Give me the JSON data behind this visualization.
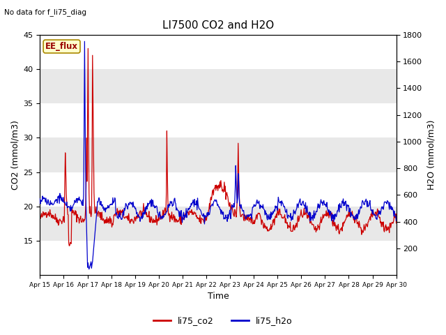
{
  "title": "LI7500 CO2 and H2O",
  "top_left_text": "No data for f_li75_diag",
  "xlabel": "Time",
  "ylabel_left": "CO2 (mmol/m3)",
  "ylabel_right": "H2O (mmol/m3)",
  "ylim_left": [
    10,
    45
  ],
  "ylim_right": [
    0,
    1800
  ],
  "yticks_left": [
    15,
    20,
    25,
    30,
    35,
    40,
    45
  ],
  "yticks_right": [
    200,
    400,
    600,
    800,
    1000,
    1200,
    1400,
    1600,
    1800
  ],
  "xtick_labels": [
    "Apr 15",
    "Apr 16",
    "Apr 17",
    "Apr 18",
    "Apr 19",
    "Apr 20",
    "Apr 21",
    "Apr 22",
    "Apr 23",
    "Apr 24",
    "Apr 25",
    "Apr 26",
    "Apr 27",
    "Apr 28",
    "Apr 29",
    "Apr 30"
  ],
  "band_color": "#e8e8e8",
  "background_color": "#ffffff",
  "co2_color": "#cc0000",
  "h2o_color": "#0000cc",
  "legend_labels": [
    "li75_co2",
    "li75_h2o"
  ],
  "ee_flux_label": "EE_flux",
  "ee_flux_bg": "#ffffcc",
  "ee_flux_border": "#aa8800"
}
